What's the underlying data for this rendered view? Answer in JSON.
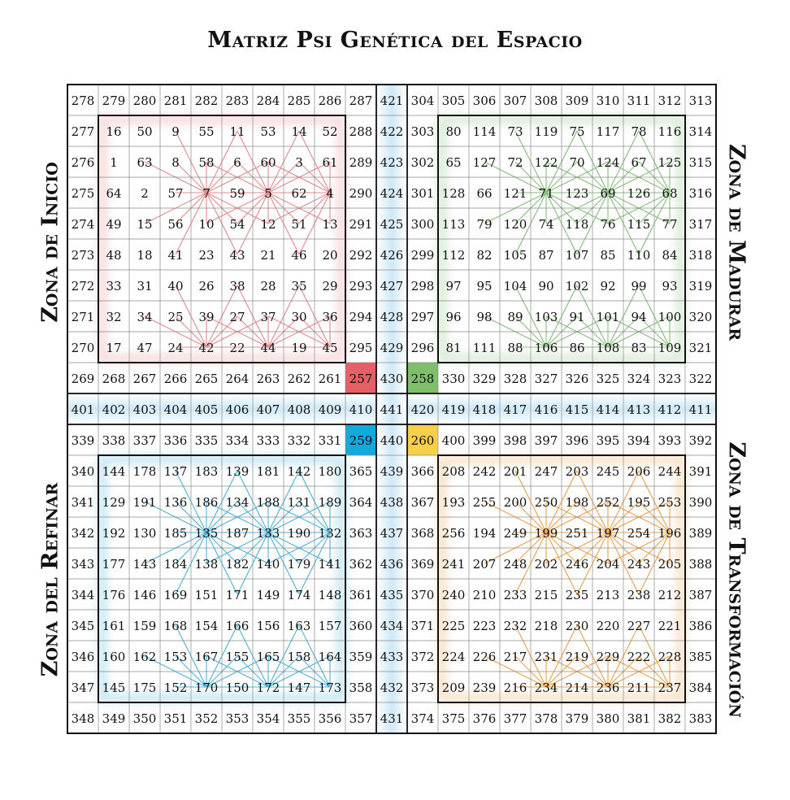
{
  "title": "Matriz Psi Genética del Espacio",
  "zones": {
    "inicio": "Zona de Inicio",
    "madurar": "Zona de Madurar",
    "refinar": "Zona del Refinar",
    "transformacion": "Zona de Transformación"
  },
  "colors": {
    "inicio": "#e48a8a",
    "madurar": "#86be7c",
    "refinar": "#4fb2d9",
    "transformacion": "#eba04d",
    "cell_257": "#e65e66",
    "cell_258": "#7fbf6c",
    "cell_259": "#13a9df",
    "cell_260": "#f6d04a",
    "band": "#c9e6f5"
  },
  "grid": [
    [
      278,
      279,
      280,
      281,
      282,
      283,
      284,
      285,
      286,
      287,
      421,
      304,
      305,
      306,
      307,
      308,
      309,
      310,
      311,
      312,
      313
    ],
    [
      277,
      16,
      50,
      9,
      55,
      11,
      53,
      14,
      52,
      288,
      422,
      303,
      80,
      114,
      73,
      119,
      75,
      117,
      78,
      116,
      314
    ],
    [
      276,
      1,
      63,
      8,
      58,
      6,
      60,
      3,
      61,
      289,
      423,
      302,
      65,
      127,
      72,
      122,
      70,
      124,
      67,
      125,
      315
    ],
    [
      275,
      64,
      2,
      57,
      7,
      59,
      5,
      62,
      4,
      290,
      424,
      301,
      128,
      66,
      121,
      71,
      123,
      69,
      126,
      68,
      316
    ],
    [
      274,
      49,
      15,
      56,
      10,
      54,
      12,
      51,
      13,
      291,
      425,
      300,
      113,
      79,
      120,
      74,
      118,
      76,
      115,
      77,
      317
    ],
    [
      273,
      48,
      18,
      41,
      23,
      43,
      21,
      46,
      20,
      292,
      426,
      299,
      112,
      82,
      105,
      87,
      107,
      85,
      110,
      84,
      318
    ],
    [
      272,
      33,
      31,
      40,
      26,
      38,
      28,
      35,
      29,
      293,
      427,
      298,
      97,
      95,
      104,
      90,
      102,
      92,
      99,
      93,
      319
    ],
    [
      271,
      32,
      34,
      25,
      39,
      27,
      37,
      30,
      36,
      294,
      428,
      297,
      96,
      98,
      89,
      103,
      91,
      101,
      94,
      100,
      320
    ],
    [
      270,
      17,
      47,
      24,
      42,
      22,
      44,
      19,
      45,
      295,
      429,
      296,
      81,
      111,
      88,
      106,
      86,
      108,
      83,
      109,
      321
    ],
    [
      269,
      268,
      267,
      266,
      265,
      264,
      263,
      262,
      261,
      257,
      430,
      258,
      330,
      329,
      328,
      327,
      326,
      325,
      324,
      323,
      322
    ],
    [
      401,
      402,
      403,
      404,
      405,
      406,
      407,
      408,
      409,
      410,
      441,
      420,
      419,
      418,
      417,
      416,
      415,
      414,
      413,
      412,
      411
    ],
    [
      339,
      338,
      337,
      336,
      335,
      334,
      333,
      332,
      331,
      259,
      440,
      260,
      400,
      399,
      398,
      397,
      396,
      395,
      394,
      393,
      392
    ],
    [
      340,
      144,
      178,
      137,
      183,
      139,
      181,
      142,
      180,
      365,
      439,
      366,
      208,
      242,
      201,
      247,
      203,
      245,
      206,
      244,
      391
    ],
    [
      341,
      129,
      191,
      136,
      186,
      134,
      188,
      131,
      189,
      364,
      438,
      367,
      193,
      255,
      200,
      250,
      198,
      252,
      195,
      253,
      390
    ],
    [
      342,
      192,
      130,
      185,
      135,
      187,
      133,
      190,
      132,
      363,
      437,
      368,
      256,
      194,
      249,
      199,
      251,
      197,
      254,
      196,
      389
    ],
    [
      343,
      177,
      143,
      184,
      138,
      182,
      140,
      179,
      141,
      362,
      436,
      369,
      241,
      207,
      248,
      202,
      246,
      204,
      243,
      205,
      388
    ],
    [
      344,
      176,
      146,
      169,
      151,
      171,
      149,
      174,
      148,
      361,
      435,
      370,
      240,
      210,
      233,
      215,
      235,
      213,
      238,
      212,
      387
    ],
    [
      345,
      161,
      159,
      168,
      154,
      166,
      156,
      163,
      157,
      360,
      434,
      371,
      225,
      223,
      232,
      218,
      230,
      220,
      227,
      221,
      386
    ],
    [
      346,
      160,
      162,
      153,
      167,
      155,
      165,
      158,
      164,
      359,
      433,
      372,
      224,
      226,
      217,
      231,
      219,
      229,
      222,
      228,
      385
    ],
    [
      347,
      145,
      175,
      152,
      170,
      150,
      172,
      147,
      173,
      358,
      432,
      373,
      209,
      239,
      216,
      234,
      214,
      236,
      211,
      237,
      384
    ],
    [
      348,
      349,
      350,
      351,
      352,
      353,
      354,
      355,
      356,
      357,
      431,
      374,
      375,
      376,
      377,
      378,
      379,
      380,
      381,
      382,
      383
    ]
  ]
}
